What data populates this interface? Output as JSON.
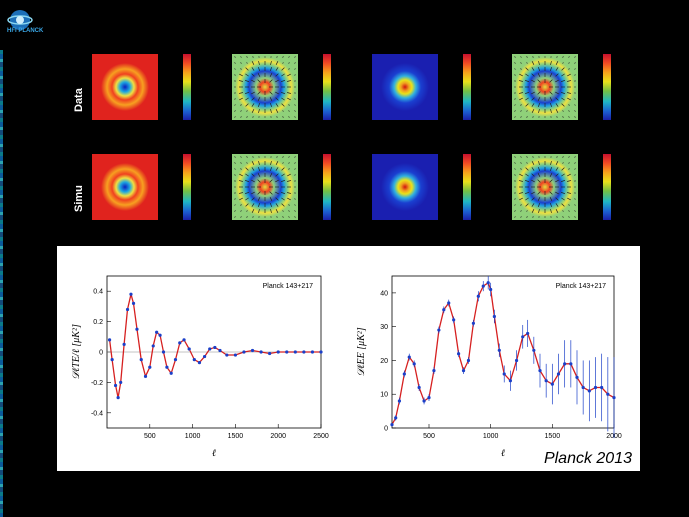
{
  "logo": {
    "text": "HFI PLANCK"
  },
  "rows": {
    "data_label": "Data",
    "simu_label": "Simu"
  },
  "colors": {
    "map_red": "#e0231e",
    "map_blue": "#1a1fb0",
    "map_green": "#8fd17a",
    "curve": "#d62020",
    "points": "#1b3fc8"
  },
  "maps": [
    {
      "row": "data",
      "type": "T-red"
    },
    {
      "row": "data",
      "type": "pol-green"
    },
    {
      "row": "data",
      "type": "T-blue"
    },
    {
      "row": "data",
      "type": "pol-green"
    },
    {
      "row": "simu",
      "type": "T-red"
    },
    {
      "row": "simu",
      "type": "pol-green"
    },
    {
      "row": "simu",
      "type": "T-blue"
    },
    {
      "row": "simu",
      "type": "pol-green"
    }
  ],
  "caption": "Planck 2013",
  "chart_data": [
    {
      "type": "line",
      "legend": "Planck 143+217",
      "xlabel": "ℓ",
      "ylabel": "𝒟ℓTE/ℓ [μK²]",
      "xlim": [
        0,
        2500
      ],
      "ylim": [
        -0.5,
        0.5
      ],
      "xticks": [
        500,
        1000,
        1500,
        2000,
        2500
      ],
      "yticks": [
        -0.4,
        -0.2,
        0,
        0.2,
        0.4
      ],
      "x": [
        30,
        60,
        100,
        130,
        160,
        200,
        240,
        280,
        310,
        350,
        400,
        450,
        500,
        540,
        580,
        620,
        660,
        700,
        750,
        800,
        850,
        900,
        960,
        1020,
        1080,
        1140,
        1200,
        1260,
        1320,
        1400,
        1500,
        1600,
        1700,
        1800,
        1900,
        2000,
        2100,
        2200,
        2300,
        2400,
        2500
      ],
      "y": [
        0.08,
        -0.05,
        -0.22,
        -0.3,
        -0.2,
        0.05,
        0.28,
        0.38,
        0.32,
        0.15,
        -0.05,
        -0.16,
        -0.1,
        0.04,
        0.13,
        0.11,
        0.0,
        -0.1,
        -0.14,
        -0.05,
        0.06,
        0.08,
        0.02,
        -0.05,
        -0.07,
        -0.03,
        0.02,
        0.03,
        0.01,
        -0.02,
        -0.02,
        0.0,
        0.01,
        0.0,
        -0.01,
        0.0,
        0.0,
        0.0,
        0.0,
        0.0,
        0.0
      ]
    },
    {
      "type": "line",
      "legend": "Planck 143+217",
      "xlabel": "ℓ",
      "ylabel": "𝒟ℓEE [μK²]",
      "xlim": [
        200,
        2000
      ],
      "ylim": [
        0,
        45
      ],
      "xticks": [
        500,
        1000,
        1500,
        2000
      ],
      "yticks": [
        0,
        10,
        20,
        30,
        40
      ],
      "x": [
        200,
        230,
        260,
        300,
        340,
        380,
        420,
        460,
        500,
        540,
        580,
        620,
        660,
        700,
        740,
        780,
        820,
        860,
        900,
        940,
        980,
        1000,
        1030,
        1070,
        1110,
        1160,
        1210,
        1260,
        1300,
        1350,
        1400,
        1450,
        1500,
        1550,
        1600,
        1650,
        1700,
        1750,
        1800,
        1850,
        1900,
        1950,
        2000
      ],
      "y": [
        1,
        3,
        8,
        16,
        21,
        19,
        12,
        8,
        9,
        17,
        29,
        35,
        37,
        32,
        22,
        17,
        20,
        31,
        39,
        42,
        43,
        41,
        33,
        23,
        16,
        14,
        20,
        27,
        28,
        23,
        17,
        14,
        13,
        16,
        19,
        19,
        15,
        12,
        11,
        12,
        12,
        10,
        9
      ],
      "errors": [
        0.5,
        0.8,
        1,
        1,
        1,
        1,
        1,
        1,
        1,
        1,
        1,
        1,
        1,
        1,
        1,
        1,
        1,
        1,
        1.5,
        1.5,
        2,
        2,
        2,
        2,
        2.5,
        3,
        3,
        3.5,
        4,
        4,
        5,
        5,
        6,
        6,
        7,
        7,
        8,
        8,
        9,
        9,
        10,
        11,
        12
      ]
    }
  ]
}
